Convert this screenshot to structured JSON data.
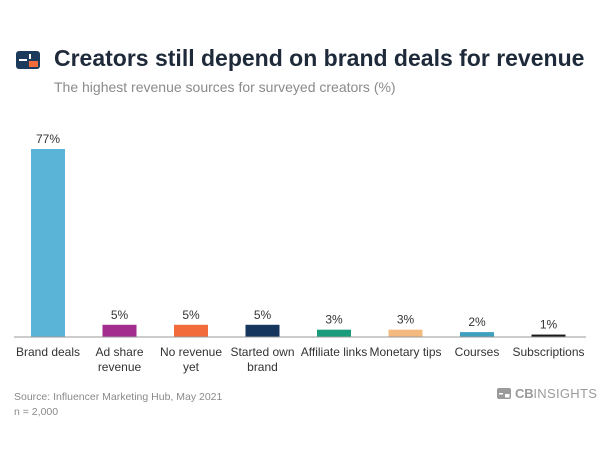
{
  "header": {
    "title": "Creators still depend on brand deals for revenue",
    "subtitle": "The highest revenue sources for surveyed creators (%)"
  },
  "chart_data": {
    "type": "bar",
    "title": "Creators still depend on brand deals for revenue",
    "subtitle": "The highest revenue sources for surveyed creators (%)",
    "categories": [
      [
        "Brand deals"
      ],
      [
        "Ad share",
        "revenue"
      ],
      [
        "No revenue",
        "yet"
      ],
      [
        "Started own",
        "brand"
      ],
      [
        "Affiliate links"
      ],
      [
        "Monetary tips"
      ],
      [
        "Courses"
      ],
      [
        "Subscriptions"
      ]
    ],
    "values": [
      77,
      5,
      5,
      5,
      3,
      3,
      2,
      1
    ],
    "value_labels": [
      "77%",
      "5%",
      "5%",
      "5%",
      "3%",
      "3%",
      "2%",
      "1%"
    ],
    "colors": [
      "#5ab4d8",
      "#a32c8f",
      "#f26b3a",
      "#17365d",
      "#1a9b7b",
      "#f4b97f",
      "#3ea0bf",
      "#1a1a1a"
    ],
    "ylim": [
      0,
      77
    ],
    "grid": false,
    "legend": "none"
  },
  "footer": {
    "source": "Source: Influencer Marketing Hub, May 2021",
    "sample": "n = 2,000",
    "brand_cb": "CB",
    "brand_insights": "INSIGHTS"
  },
  "colors": {
    "logo_navy": "#1b3a5c",
    "logo_orange": "#f26b3a",
    "title": "#1e2a3a",
    "baseline": "#999999"
  }
}
